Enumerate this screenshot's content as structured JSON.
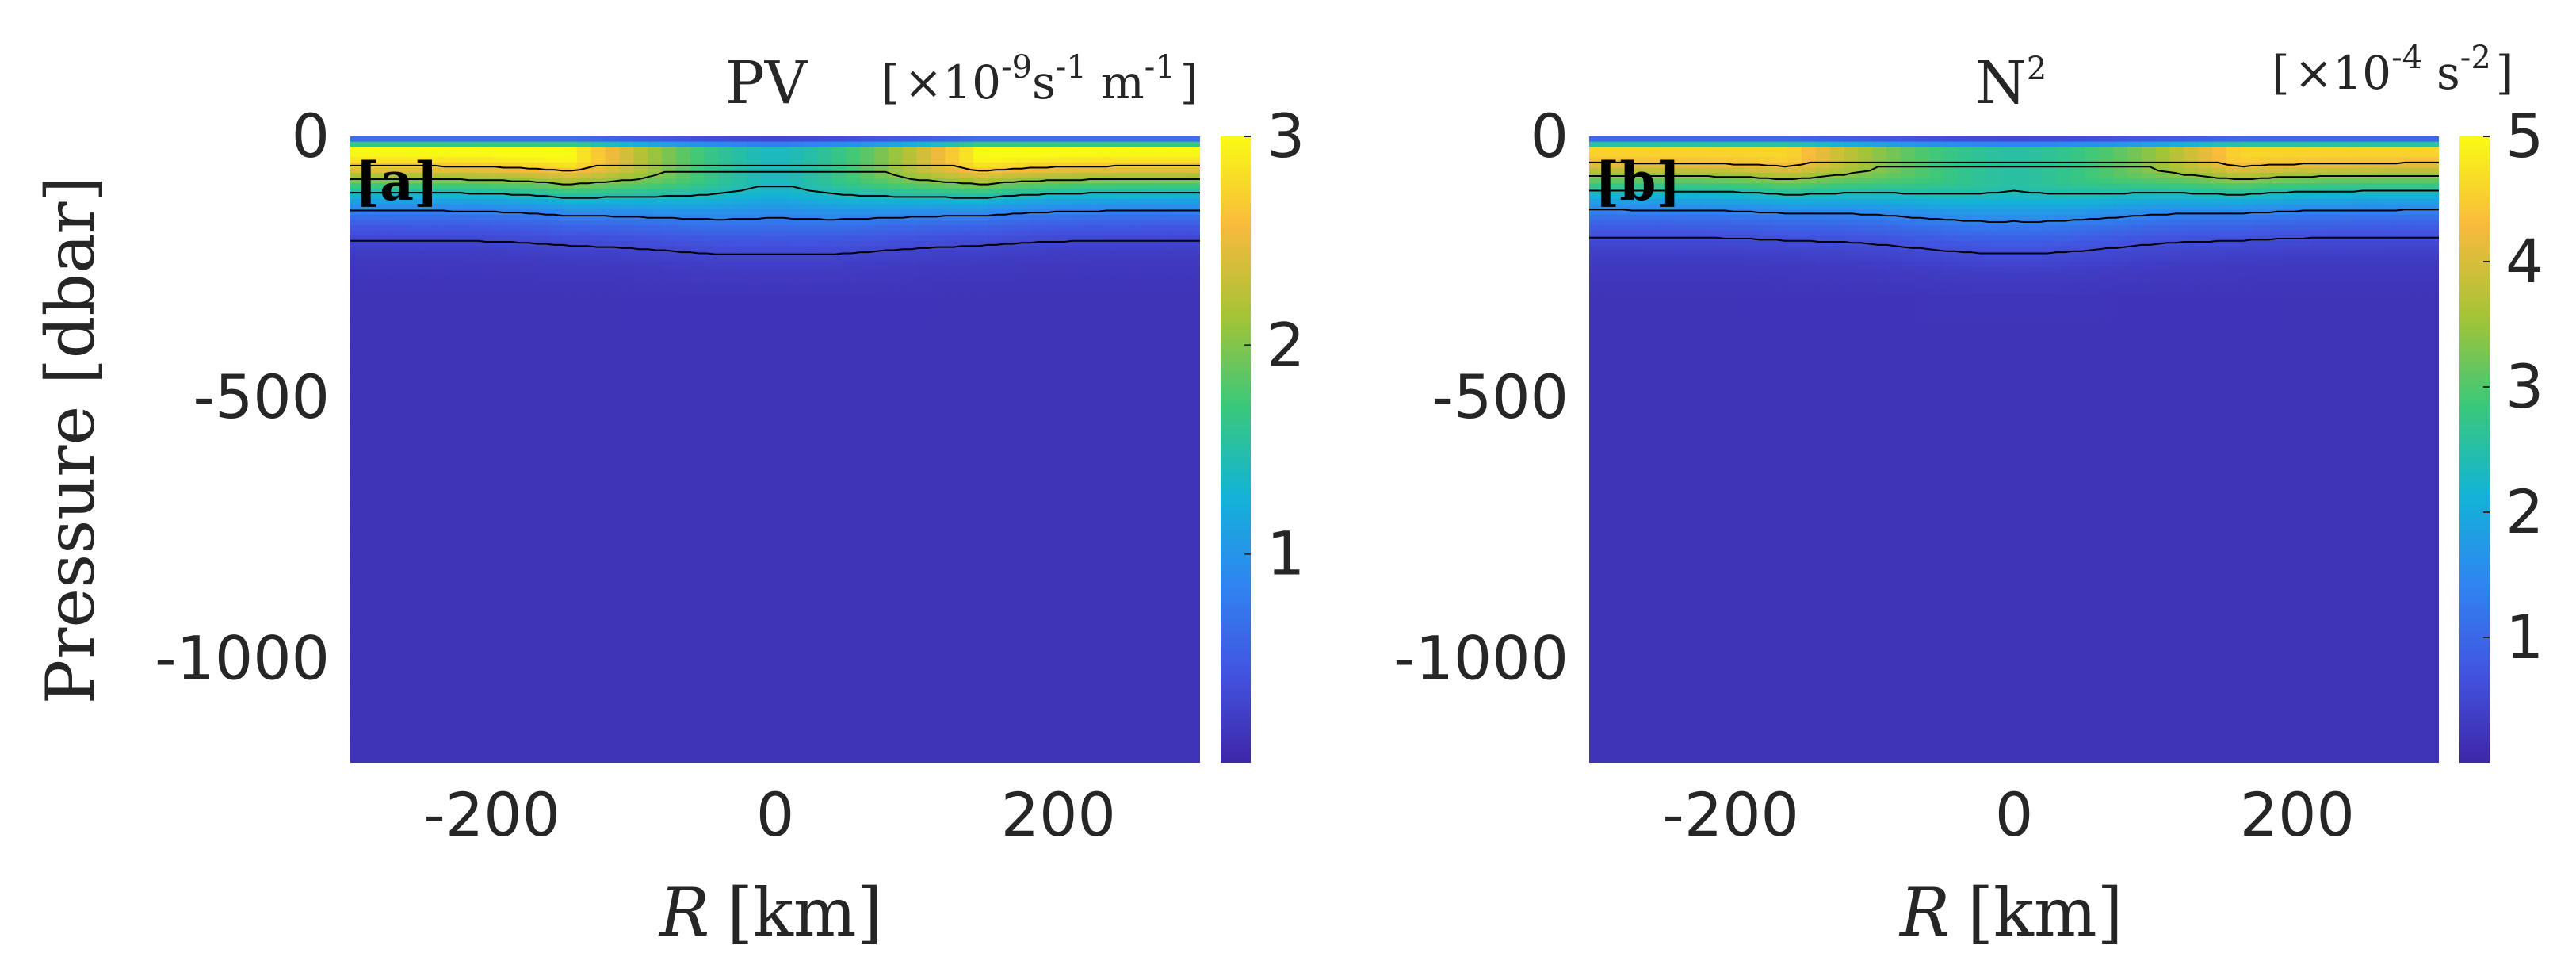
{
  "chart_data": [
    {
      "type": "heatmap",
      "panel_label": "[a]",
      "title": "PV",
      "units": {
        "open": "[",
        "times": "×",
        "base": "10",
        "exp": "-9",
        "s": "s",
        "s_exp": "-1",
        "m": "m",
        "m_exp": "-1",
        "close": "]"
      },
      "xlabel_var": "R",
      "xlabel_unit": "[km]",
      "ylabel": "Pressure [dbar]",
      "xlim": [
        -300,
        300
      ],
      "ylim": [
        -1200,
        0
      ],
      "xticks": [
        -200,
        0,
        200
      ],
      "xtick_labels": [
        "-200",
        "0",
        "200"
      ],
      "yticks": [
        0,
        -500,
        -1000
      ],
      "ytick_labels": [
        "0",
        "-500",
        "-1000"
      ],
      "colorbar": {
        "range": [
          0,
          3
        ],
        "ticks": [
          1,
          2,
          3
        ],
        "tick_labels": [
          "1",
          "2",
          "3"
        ]
      },
      "colormap": [
        "#3e26a8",
        "#4254e0",
        "#2f85f1",
        "#13b4d5",
        "#3bc87a",
        "#a6c336",
        "#f8ba3d",
        "#f9fb15"
      ],
      "surface_max_value": 3,
      "surface_max_x_center": 200,
      "center_min_value": 1.2,
      "decay_depth": 90,
      "deep_value": 0.12,
      "contour_levels": [
        0.3,
        0.8,
        1.4,
        2.0,
        2.6
      ]
    },
    {
      "type": "heatmap",
      "panel_label": "[b]",
      "title": "N",
      "title_sup": "2",
      "units": {
        "open": "[",
        "times": "×",
        "base": "10",
        "exp": "-4",
        "s": "s",
        "s_exp": "-2",
        "close": "]"
      },
      "xlabel_var": "R",
      "xlabel_unit": "[km]",
      "xlim": [
        -300,
        300
      ],
      "ylim": [
        -1200,
        0
      ],
      "xticks": [
        -200,
        0,
        200
      ],
      "xtick_labels": [
        "-200",
        "0",
        "200"
      ],
      "yticks": [
        0,
        -500,
        -1000
      ],
      "ytick_labels": [
        "0",
        "-500",
        "-1000"
      ],
      "colorbar": {
        "range": [
          0,
          5
        ],
        "ticks": [
          1,
          2,
          3,
          4,
          5
        ],
        "tick_labels": [
          "1",
          "2",
          "3",
          "4",
          "5"
        ]
      },
      "colormap": [
        "#3e26a8",
        "#4254e0",
        "#2f85f1",
        "#13b4d5",
        "#3bc87a",
        "#a6c336",
        "#f8ba3d",
        "#f9fb15"
      ],
      "surface_max_value": 4.6,
      "surface_max_x_center": 220,
      "center_min_value": 2.4,
      "decay_depth": 95,
      "deep_value": 0.2,
      "contour_levels": [
        0.6,
        1.4,
        2.4,
        3.4,
        4.2
      ]
    }
  ]
}
